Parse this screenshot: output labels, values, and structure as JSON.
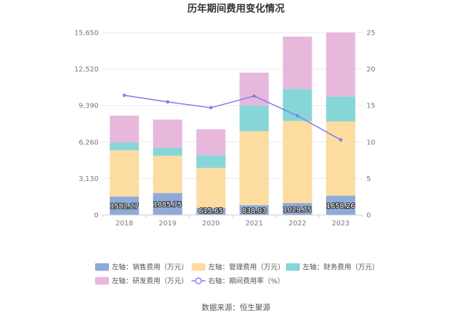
{
  "chart_data": {
    "type": "bar",
    "title": "历年期间费用变化情况",
    "source": "数据来源：恒生聚源",
    "categories": [
      "2018",
      "2019",
      "2020",
      "2021",
      "2022",
      "2023"
    ],
    "series": [
      {
        "name": "左轴：销售费用（万元）",
        "color": "#8eaad8",
        "axis": "left",
        "values": [
          1582.27,
          1885.75,
          615.65,
          838.03,
          1029.75,
          1658.26
        ]
      },
      {
        "name": "左轴：管理费用（万元）",
        "color": "#fcdca0",
        "axis": "left",
        "values": [
          3970,
          3200,
          3420,
          6350,
          7040,
          6370
        ]
      },
      {
        "name": "左轴：财务费用（万元）",
        "color": "#86d6d8",
        "axis": "left",
        "values": [
          670,
          700,
          1080,
          2200,
          2750,
          2130
        ]
      },
      {
        "name": "左轴：研发费用（万元）",
        "color": "#e8b8dc",
        "axis": "left",
        "values": [
          2300,
          2400,
          2240,
          2830,
          4480,
          5500
        ]
      },
      {
        "name": "右轴：期间费用率（%）",
        "color": "#7b7ff0",
        "axis": "right",
        "type": "line",
        "values": [
          16.4,
          15.5,
          14.7,
          16.3,
          13.6,
          10.3
        ]
      }
    ],
    "data_labels": [
      "1582.27",
      "1885.75",
      "615.65",
      "838.03",
      "1029.75",
      "1658.26"
    ],
    "left_axis": {
      "ticks": [
        "0",
        "3,130",
        "6,260",
        "9,390",
        "12,520",
        "15,650"
      ],
      "ylim": [
        0,
        15650
      ]
    },
    "right_axis": {
      "ticks": [
        "0",
        "5",
        "10",
        "15",
        "20",
        "25"
      ],
      "ylim": [
        0,
        25
      ]
    },
    "grid": true,
    "legend_position": "bottom"
  }
}
